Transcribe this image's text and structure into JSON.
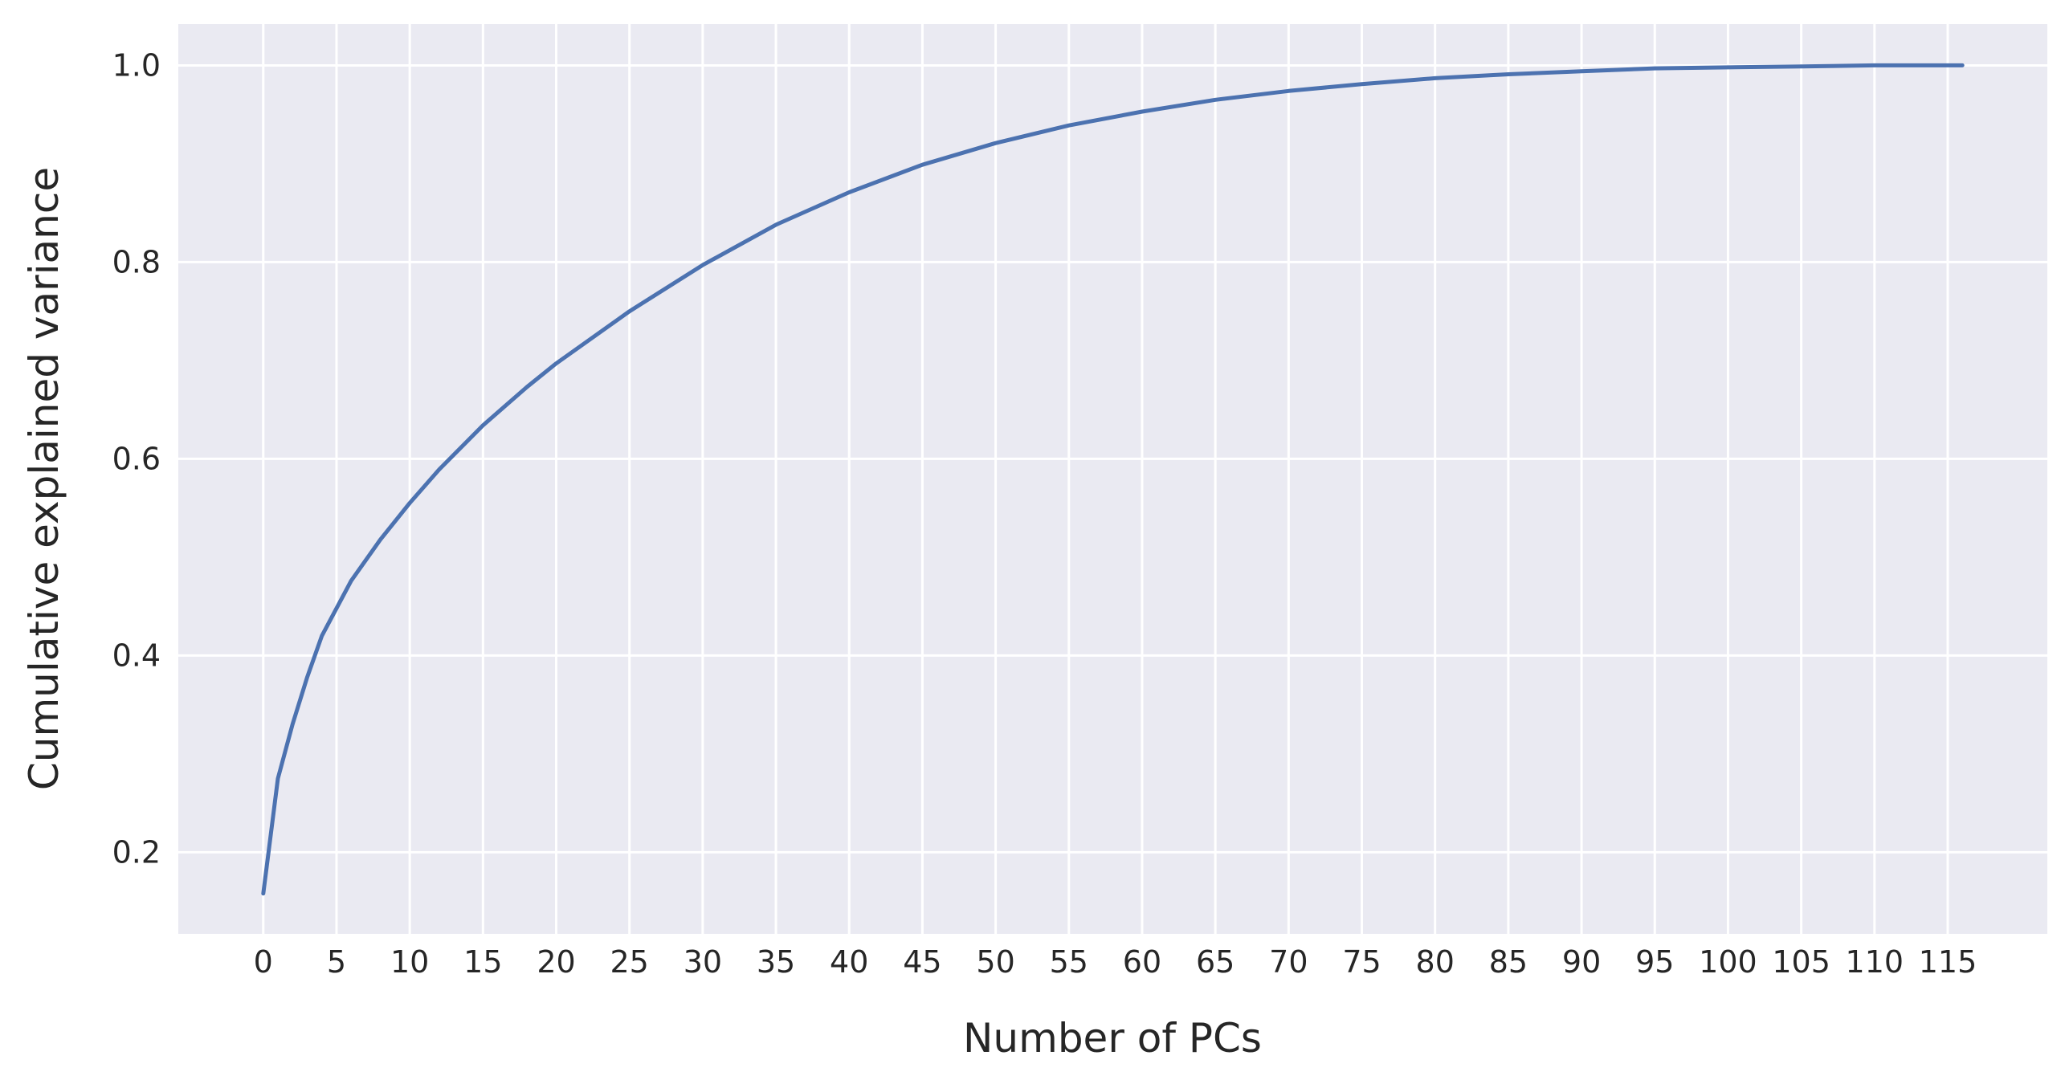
{
  "chart_data": {
    "type": "line",
    "title": "",
    "xlabel": "Number of PCs",
    "ylabel": "Cumulative explained variance",
    "xlim": [
      -5.8,
      121.8
    ],
    "ylim": [
      0.117,
      1.042
    ],
    "x_ticks": [
      0,
      5,
      10,
      15,
      20,
      25,
      30,
      35,
      40,
      45,
      50,
      55,
      60,
      65,
      70,
      75,
      80,
      85,
      90,
      95,
      100,
      105,
      110,
      115
    ],
    "x_tick_labels": [
      "0",
      "5",
      "10",
      "15",
      "20",
      "25",
      "30",
      "35",
      "40",
      "45",
      "50",
      "55",
      "60",
      "65",
      "70",
      "75",
      "80",
      "85",
      "90",
      "95",
      "100",
      "105",
      "110",
      "115"
    ],
    "y_ticks": [
      0.2,
      0.4,
      0.6,
      0.8,
      1.0
    ],
    "y_tick_labels": [
      "0.2",
      "0.4",
      "0.6",
      "0.8",
      "1.0"
    ],
    "grid": true,
    "legend": "none",
    "background_color": "#eaeaf2",
    "line_color": "#4c72b0",
    "series": [
      {
        "x": [
          0,
          1,
          2,
          3,
          4,
          6,
          8,
          10,
          12,
          15,
          18,
          20,
          25,
          30,
          35,
          40,
          45,
          50,
          55,
          60,
          65,
          70,
          75,
          80,
          85,
          90,
          95,
          100,
          105,
          110,
          116
        ],
        "values": [
          0.158,
          0.275,
          0.33,
          0.378,
          0.42,
          0.476,
          0.518,
          0.555,
          0.589,
          0.634,
          0.673,
          0.697,
          0.75,
          0.797,
          0.838,
          0.871,
          0.899,
          0.921,
          0.939,
          0.953,
          0.965,
          0.974,
          0.981,
          0.987,
          0.991,
          0.994,
          0.997,
          0.998,
          0.999,
          1.0,
          1.0
        ]
      }
    ]
  }
}
